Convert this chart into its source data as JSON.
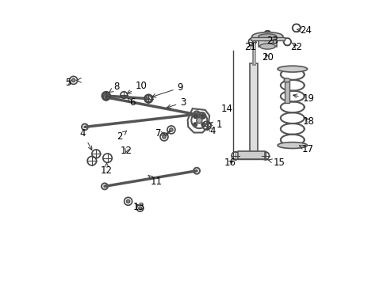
{
  "background_color": "#ffffff",
  "figure_size": [
    4.89,
    3.6
  ],
  "dpi": 100
}
